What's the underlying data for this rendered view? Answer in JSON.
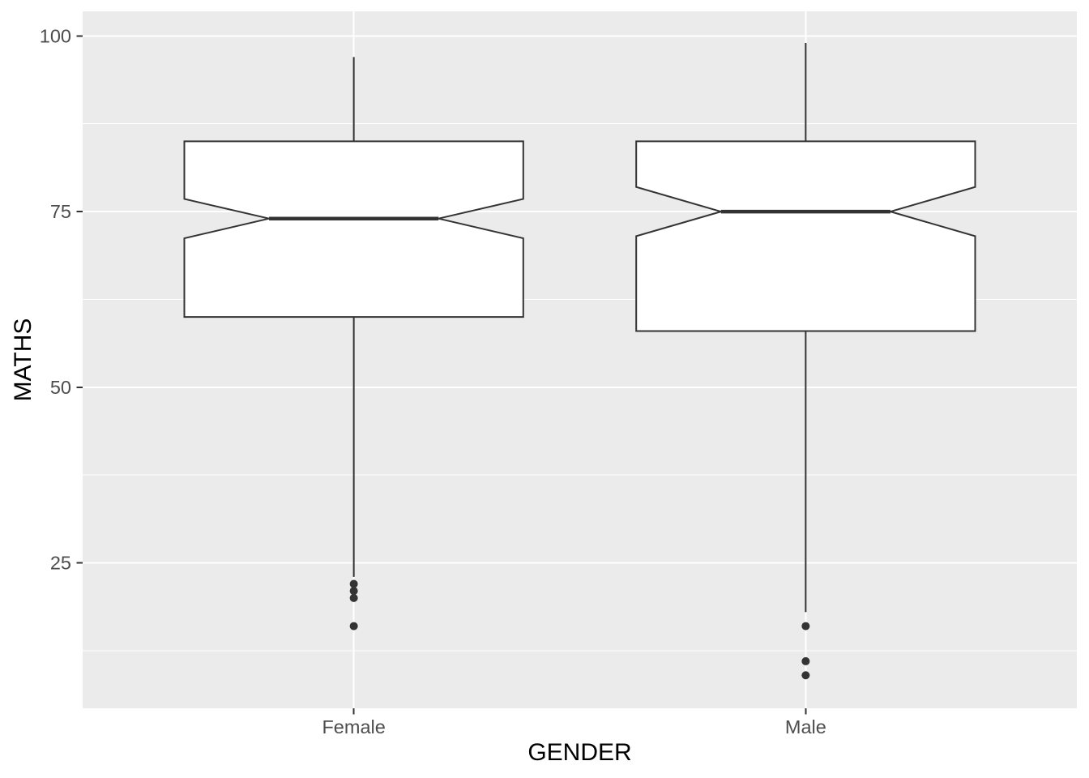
{
  "chart_data": {
    "type": "boxplot",
    "variant": "notched",
    "xlabel": "GENDER",
    "ylabel": "MATHS",
    "categories": [
      "Female",
      "Male"
    ],
    "y_ticks": [
      25,
      50,
      75,
      100
    ],
    "y_minor_ticks": [
      12.5,
      37.5,
      62.5,
      87.5
    ],
    "ylim": [
      4.3,
      103.5
    ],
    "grid": true,
    "legend": "none",
    "series": [
      {
        "category": "Female",
        "whisker_min": 23,
        "q1": 60,
        "median": 74,
        "q3": 85,
        "whisker_max": 97,
        "notch_lower": 71.2,
        "notch_upper": 76.8,
        "outliers": [
          22,
          21,
          20,
          16
        ]
      },
      {
        "category": "Male",
        "whisker_min": 18,
        "q1": 58,
        "median": 75,
        "q3": 85,
        "whisker_max": 99,
        "notch_lower": 71.5,
        "notch_upper": 78.5,
        "outliers": [
          16,
          11,
          9
        ]
      }
    ],
    "style": {
      "panel_bg": "#ebebeb",
      "grid_color": "#ffffff",
      "box_fill": "#ffffff",
      "line_color": "#333333",
      "outlier_color": "#333333",
      "tick_label_color": "#4d4d4d",
      "axis_title_color": "#000000"
    }
  }
}
